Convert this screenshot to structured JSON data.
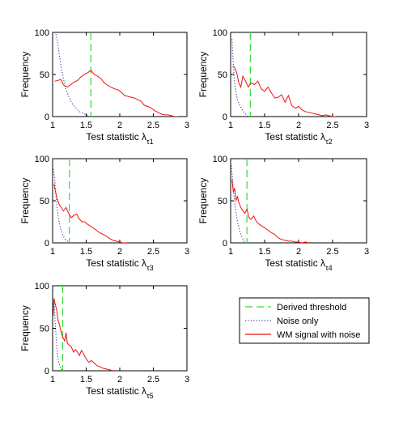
{
  "chart_data": [
    {
      "type": "line",
      "xlabel": "Test statistic λ",
      "xlabel_sub": "τ1",
      "ylabel": "Frequency",
      "xlim": [
        1,
        3
      ],
      "ylim": [
        0,
        100
      ],
      "xticks": [
        "1",
        "1.5",
        "2",
        "2.5",
        "3"
      ],
      "xtick_values": [
        1,
        1.5,
        2,
        2.5,
        3
      ],
      "yticks": [
        "0",
        "50",
        "100"
      ],
      "ytick_values": [
        0,
        50,
        100
      ],
      "threshold": 1.57,
      "series": [
        {
          "name": "Noise only",
          "x": [
            1.05,
            1.08,
            1.12,
            1.16,
            1.2,
            1.25,
            1.3,
            1.35,
            1.4,
            1.45,
            1.5,
            1.55
          ],
          "y": [
            98,
            85,
            62,
            45,
            32,
            22,
            14,
            10,
            6,
            4,
            2,
            0
          ]
        },
        {
          "name": "WM signal with noise",
          "x": [
            1.03,
            1.08,
            1.12,
            1.17,
            1.22,
            1.27,
            1.32,
            1.37,
            1.42,
            1.47,
            1.52,
            1.57,
            1.62,
            1.67,
            1.72,
            1.77,
            1.82,
            1.87,
            1.92,
            1.97,
            2.02,
            2.07,
            2.12,
            2.17,
            2.22,
            2.27,
            2.32,
            2.37,
            2.42,
            2.47,
            2.52,
            2.57,
            2.62,
            2.67,
            2.72,
            2.77,
            2.82,
            2.87
          ],
          "y": [
            42,
            43,
            44,
            37,
            35,
            38,
            41,
            43,
            47,
            50,
            52,
            55,
            50,
            48,
            45,
            40,
            37,
            35,
            33,
            32,
            29,
            25,
            24,
            23,
            22,
            20,
            18,
            13,
            12,
            10,
            7,
            5,
            3,
            2,
            2,
            1,
            0,
            0
          ]
        }
      ]
    },
    {
      "type": "line",
      "xlabel": "Test statistic λ",
      "xlabel_sub": "τ2",
      "ylabel": "Frequency",
      "xlim": [
        1,
        3
      ],
      "ylim": [
        0,
        100
      ],
      "xticks": [
        "1",
        "1.5",
        "2",
        "2.5",
        "3"
      ],
      "xtick_values": [
        1,
        1.5,
        2,
        2.5,
        3
      ],
      "yticks": [
        "0",
        "50",
        "100"
      ],
      "ytick_values": [
        0,
        50,
        100
      ],
      "threshold": 1.29,
      "series": [
        {
          "name": "Noise only",
          "x": [
            1.02,
            1.04,
            1.06,
            1.08,
            1.1,
            1.13,
            1.16,
            1.19,
            1.22,
            1.25
          ],
          "y": [
            92,
            60,
            40,
            28,
            20,
            14,
            10,
            6,
            3,
            0
          ]
        },
        {
          "name": "WM signal with noise",
          "x": [
            1.03,
            1.06,
            1.09,
            1.12,
            1.15,
            1.18,
            1.22,
            1.26,
            1.3,
            1.35,
            1.4,
            1.45,
            1.5,
            1.55,
            1.6,
            1.65,
            1.7,
            1.75,
            1.8,
            1.85,
            1.9,
            1.95,
            2.0,
            2.05,
            2.1,
            2.15,
            2.2,
            2.25,
            2.3,
            2.35,
            2.4,
            2.45,
            2.5,
            2.55
          ],
          "y": [
            60,
            58,
            52,
            40,
            35,
            48,
            42,
            35,
            40,
            38,
            42,
            33,
            30,
            35,
            28,
            22,
            23,
            26,
            17,
            25,
            13,
            10,
            12,
            8,
            6,
            5,
            4,
            3,
            2,
            1,
            2,
            1,
            0,
            0
          ]
        }
      ]
    },
    {
      "type": "line",
      "xlabel": "Test statistic λ",
      "xlabel_sub": "τ3",
      "ylabel": "Frequency",
      "xlim": [
        1,
        3
      ],
      "ylim": [
        0,
        100
      ],
      "xticks": [
        "1",
        "1.5",
        "2",
        "2.5",
        "3"
      ],
      "xtick_values": [
        1,
        1.5,
        2,
        2.5,
        3
      ],
      "yticks": [
        "0",
        "50",
        "100"
      ],
      "ytick_values": [
        0,
        50,
        100
      ],
      "threshold": 1.25,
      "series": [
        {
          "name": "Noise only",
          "x": [
            1.01,
            1.03,
            1.05,
            1.07,
            1.09,
            1.11,
            1.13,
            1.16,
            1.19,
            1.22,
            1.25
          ],
          "y": [
            88,
            78,
            55,
            40,
            28,
            20,
            14,
            8,
            4,
            2,
            0
          ]
        },
        {
          "name": "WM signal with noise",
          "x": [
            1.02,
            1.04,
            1.06,
            1.08,
            1.1,
            1.13,
            1.16,
            1.2,
            1.24,
            1.28,
            1.32,
            1.36,
            1.4,
            1.44,
            1.48,
            1.52,
            1.56,
            1.6,
            1.65,
            1.7,
            1.75,
            1.8,
            1.85,
            1.9,
            1.95,
            2.0,
            2.05,
            2.1
          ],
          "y": [
            70,
            62,
            55,
            50,
            45,
            42,
            38,
            42,
            35,
            30,
            33,
            34,
            28,
            25,
            25,
            22,
            20,
            18,
            15,
            12,
            10,
            8,
            5,
            3,
            2,
            1,
            0,
            0
          ]
        }
      ]
    },
    {
      "type": "line",
      "xlabel": "Test statistic λ",
      "xlabel_sub": "τ4",
      "ylabel": "Frequency",
      "xlim": [
        1,
        3
      ],
      "ylim": [
        0,
        100
      ],
      "xticks": [
        "1",
        "1.5",
        "2",
        "2.5",
        "3"
      ],
      "xtick_values": [
        1,
        1.5,
        2,
        2.5,
        3
      ],
      "yticks": [
        "0",
        "50",
        "100"
      ],
      "ytick_values": [
        0,
        50,
        100
      ],
      "threshold": 1.24,
      "series": [
        {
          "name": "Noise only",
          "x": [
            1.01,
            1.03,
            1.05,
            1.07,
            1.09,
            1.11,
            1.13,
            1.15,
            1.17,
            1.19,
            1.21
          ],
          "y": [
            92,
            75,
            55,
            40,
            30,
            22,
            15,
            10,
            6,
            3,
            0
          ]
        },
        {
          "name": "WM signal with noise",
          "x": [
            1.02,
            1.04,
            1.06,
            1.08,
            1.1,
            1.12,
            1.15,
            1.18,
            1.21,
            1.24,
            1.27,
            1.3,
            1.34,
            1.38,
            1.42,
            1.46,
            1.5,
            1.55,
            1.6,
            1.65,
            1.7,
            1.75,
            1.8,
            1.85,
            1.9,
            1.95,
            2.0,
            2.05,
            2.1,
            2.15
          ],
          "y": [
            75,
            60,
            65,
            50,
            55,
            48,
            42,
            38,
            35,
            40,
            30,
            28,
            32,
            25,
            22,
            20,
            18,
            15,
            12,
            10,
            6,
            4,
            3,
            2,
            2,
            1,
            1,
            0,
            1,
            0
          ]
        }
      ]
    },
    {
      "type": "line",
      "xlabel": "Test statistic λ",
      "xlabel_sub": "τ5",
      "ylabel": "Frequency",
      "xlim": [
        1,
        3
      ],
      "ylim": [
        0,
        100
      ],
      "xticks": [
        "1",
        "1.5",
        "2",
        "2.5",
        "3"
      ],
      "xtick_values": [
        1,
        1.5,
        2,
        2.5,
        3
      ],
      "yticks": [
        "0",
        "50",
        "100"
      ],
      "ytick_values": [
        0,
        50,
        100
      ],
      "threshold": 1.15,
      "series": [
        {
          "name": "Noise only",
          "x": [
            1.01,
            1.02,
            1.03,
            1.04,
            1.05,
            1.06,
            1.07,
            1.08,
            1.1,
            1.12,
            1.14
          ],
          "y": [
            75,
            85,
            70,
            55,
            42,
            30,
            20,
            14,
            8,
            3,
            0
          ]
        },
        {
          "name": "WM signal with noise",
          "x": [
            1.01,
            1.02,
            1.04,
            1.06,
            1.08,
            1.1,
            1.12,
            1.14,
            1.16,
            1.18,
            1.2,
            1.22,
            1.25,
            1.28,
            1.31,
            1.34,
            1.37,
            1.4,
            1.43,
            1.46,
            1.5,
            1.54,
            1.58,
            1.62,
            1.66,
            1.7,
            1.75,
            1.8,
            1.85,
            1.9
          ],
          "y": [
            65,
            85,
            78,
            72,
            60,
            55,
            48,
            42,
            38,
            35,
            45,
            32,
            30,
            28,
            22,
            25,
            22,
            18,
            24,
            20,
            14,
            10,
            12,
            9,
            6,
            5,
            3,
            2,
            1,
            0
          ]
        }
      ]
    }
  ],
  "legend": {
    "position": "bottom-right",
    "items": [
      {
        "label": "Derived threshold",
        "color": "#33dd33",
        "style": "dashed"
      },
      {
        "label": "Noise only",
        "color": "#3a3aa0",
        "style": "dotted"
      },
      {
        "label": "WM signal with noise",
        "color": "#ee1111",
        "style": "solid"
      }
    ]
  },
  "colors": {
    "threshold": "#33dd33",
    "noise": "#3a3aa0",
    "signal": "#ee1111"
  }
}
